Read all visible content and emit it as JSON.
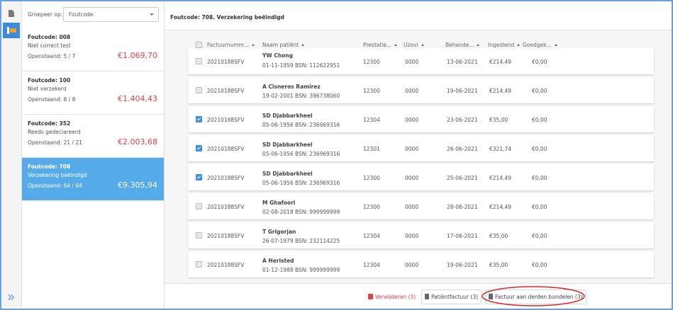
{
  "sidebar": {
    "group_label": "Groepeer op:",
    "group_value": "Foutcode"
  },
  "groups": [
    {
      "title": "Foutcode: 008",
      "description": "Niet correct test",
      "open": "Openstaand: 5 / 7",
      "amount": "€1.069,70",
      "selected": false
    },
    {
      "title": "Foutcode: 100",
      "description": "Niet verzekerd",
      "open": "Openstaand: 8 / 8",
      "amount": "€1.404,43",
      "selected": false
    },
    {
      "title": "Foutcode: 352",
      "description": "Reeds gedeclareerd",
      "open": "Openstaand: 21 / 21",
      "amount": "€2.003,68",
      "selected": false
    },
    {
      "title": "Foutcode: 708",
      "description": "Verzekering beëindigd",
      "open": "Openstaand: 64 / 64",
      "amount": "€9.305,94",
      "selected": true
    }
  ],
  "main": {
    "title": "Foutcode: 708. Verzekering beëindigd",
    "columns": [
      "Factuurnumm...",
      "Naam patiënt",
      "Prestatie...",
      "Uzovi",
      "Behande...",
      "Ingediend",
      "Goedgek..."
    ],
    "rows": [
      {
        "checked": false,
        "invoice": "20210188SFV",
        "name": "YW Chong",
        "details": "01-11-1959 BSN: 112622951",
        "prestatie": "12300",
        "uzovi": "0000",
        "date": "13-06-2021",
        "submitted": "€214,49",
        "approved": "€0,00"
      },
      {
        "checked": false,
        "invoice": "20210188SFV",
        "name": "A Cisneros Ramirez",
        "details": "19-02-2001 BSN: 396738060",
        "prestatie": "12300",
        "uzovi": "0000",
        "date": "19-06-2021",
        "submitted": "€214,49",
        "approved": "€0,00"
      },
      {
        "checked": true,
        "invoice": "20210188SFV",
        "name": "SD Djabbarkheel",
        "details": "05-06-1956 BSN: 236969316",
        "prestatie": "12304",
        "uzovi": "0000",
        "date": "23-06-2021",
        "submitted": "€35,00",
        "approved": "€0,00"
      },
      {
        "checked": true,
        "invoice": "20210188SFV",
        "name": "SD Djabbarkheel",
        "details": "05-06-1956 BSN: 236969316",
        "prestatie": "12301",
        "uzovi": "0000",
        "date": "26-06-2021",
        "submitted": "€321,74",
        "approved": "€0,00"
      },
      {
        "checked": true,
        "invoice": "20210188SFV",
        "name": "SD Djabbarkheel",
        "details": "05-06-1956 BSN: 236969316",
        "prestatie": "12300",
        "uzovi": "0000",
        "date": "25-06-2021",
        "submitted": "€214,49",
        "approved": "€0,00"
      },
      {
        "checked": false,
        "invoice": "20210188SFV",
        "name": "M Ghafoori",
        "details": "02-08-2018 BSN: 999999999",
        "prestatie": "12300",
        "uzovi": "0000",
        "date": "28-06-2021",
        "submitted": "€214,49",
        "approved": "€0,00"
      },
      {
        "checked": false,
        "invoice": "20210188SFV",
        "name": "T Grigorjan",
        "details": "26-07-1979 BSN: 232114225",
        "prestatie": "12304",
        "uzovi": "0000",
        "date": "17-06-2021",
        "submitted": "€35,00",
        "approved": "€0,00"
      },
      {
        "checked": false,
        "invoice": "20210188SFV",
        "name": "A Heristed",
        "details": "01-12-1988 BSN: 999999999",
        "prestatie": "12304",
        "uzovi": "0000",
        "date": "19-06-2021",
        "submitted": "€35,00",
        "approved": "€0,00"
      }
    ]
  },
  "actions": {
    "delete": "Verwijderen (3)",
    "patient_invoice": "Patiëntfactuur (3)",
    "bundle": "Factuur aan derden bundelen (3)"
  }
}
